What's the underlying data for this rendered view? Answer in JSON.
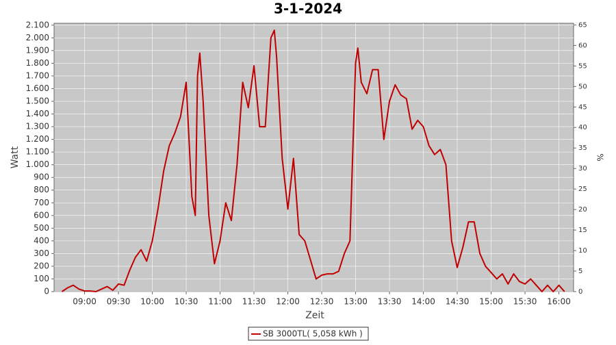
{
  "chart_data": {
    "type": "line",
    "title": "3-1-2024",
    "x_label": "Zeit",
    "y_label": "Watt",
    "y2_label": "%",
    "x": [
      "08:40",
      "08:45",
      "08:50",
      "08:55",
      "09:00",
      "09:05",
      "09:10",
      "09:15",
      "09:20",
      "09:25",
      "09:30",
      "09:35",
      "09:40",
      "09:45",
      "09:50",
      "09:55",
      "10:00",
      "10:05",
      "10:10",
      "10:15",
      "10:20",
      "10:25",
      "10:30",
      "10:35",
      "10:38",
      "10:40",
      "10:42",
      "10:45",
      "10:50",
      "10:55",
      "11:00",
      "11:05",
      "11:10",
      "11:15",
      "11:20",
      "11:25",
      "11:30",
      "11:35",
      "11:40",
      "11:45",
      "11:48",
      "11:50",
      "11:55",
      "12:00",
      "12:05",
      "12:10",
      "12:15",
      "12:20",
      "12:25",
      "12:30",
      "12:35",
      "12:40",
      "12:45",
      "12:50",
      "12:55",
      "13:00",
      "13:02",
      "13:05",
      "13:10",
      "13:15",
      "13:20",
      "13:25",
      "13:30",
      "13:35",
      "13:40",
      "13:45",
      "13:50",
      "13:55",
      "14:00",
      "14:05",
      "14:10",
      "14:15",
      "14:20",
      "14:25",
      "14:30",
      "14:35",
      "14:40",
      "14:45",
      "14:50",
      "14:55",
      "15:00",
      "15:05",
      "15:10",
      "15:15",
      "15:20",
      "15:25",
      "15:30",
      "15:35",
      "15:40",
      "15:45",
      "15:50",
      "15:55",
      "16:00",
      "16:05"
    ],
    "series": [
      {
        "name": "SB 3000TL( 5,058 kWh )",
        "color": "#c00000",
        "values": [
          0,
          30,
          50,
          20,
          5,
          5,
          0,
          20,
          40,
          10,
          60,
          50,
          170,
          270,
          330,
          240,
          400,
          650,
          950,
          1150,
          1250,
          1380,
          1650,
          750,
          600,
          1700,
          1880,
          1500,
          600,
          220,
          400,
          700,
          560,
          1000,
          1650,
          1450,
          1780,
          1300,
          1300,
          2000,
          2060,
          1850,
          1050,
          650,
          1050,
          450,
          400,
          250,
          100,
          130,
          140,
          140,
          160,
          300,
          400,
          1800,
          1920,
          1650,
          1560,
          1750,
          1750,
          1200,
          1500,
          1630,
          1550,
          1520,
          1280,
          1350,
          1300,
          1150,
          1080,
          1120,
          1000,
          400,
          190,
          350,
          550,
          550,
          300,
          200,
          150,
          100,
          140,
          60,
          140,
          80,
          60,
          100,
          50,
          0,
          50,
          0,
          50,
          0
        ]
      }
    ],
    "xlim": [
      "08:33",
      "16:13"
    ],
    "xticks": [
      "09:00",
      "09:30",
      "10:00",
      "10:30",
      "11:00",
      "11:30",
      "12:00",
      "12:30",
      "13:00",
      "13:30",
      "14:00",
      "14:30",
      "15:00",
      "15:30",
      "16:00"
    ],
    "ylim": [
      0,
      2115
    ],
    "yticks": [
      0,
      100,
      200,
      300,
      400,
      500,
      600,
      700,
      800,
      900,
      {
        "value": 1000,
        "label": "1.000"
      },
      {
        "value": 1100,
        "label": "1.100"
      },
      {
        "value": 1200,
        "label": "1.200"
      },
      {
        "value": 1300,
        "label": "1.300"
      },
      {
        "value": 1400,
        "label": "1.400"
      },
      {
        "value": 1500,
        "label": "1.500"
      },
      {
        "value": 1600,
        "label": "1.600"
      },
      {
        "value": 1700,
        "label": "1.700"
      },
      {
        "value": 1800,
        "label": "1.800"
      },
      {
        "value": 1900,
        "label": "1.900"
      },
      {
        "value": 2000,
        "label": "2.000"
      },
      {
        "value": 2100,
        "label": "2.100"
      }
    ],
    "y2lim": [
      0,
      65.4
    ],
    "y2ticks": [
      0,
      5,
      10,
      15,
      20,
      25,
      30,
      35,
      40,
      45,
      50,
      55,
      60,
      65
    ],
    "grid": true,
    "legend": "bottom"
  }
}
